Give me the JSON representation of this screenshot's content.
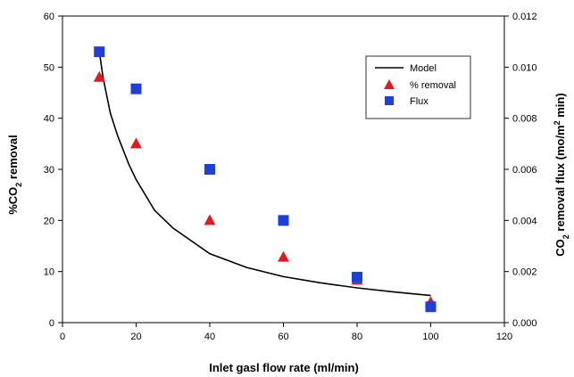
{
  "chart_data": {
    "type": "scatter",
    "x_axis": {
      "label": "Inlet gasl flow rate (ml/min)",
      "range": [
        0,
        120
      ],
      "ticks": [
        "0",
        "20",
        "40",
        "60",
        "80",
        "100",
        "120"
      ]
    },
    "y_axis_left": {
      "label_main": "%CO",
      "label_sub": "2",
      "label_rest": " removal",
      "range": [
        0,
        60
      ],
      "ticks": [
        "0",
        "10",
        "20",
        "30",
        "40",
        "50",
        "60"
      ]
    },
    "y_axis_right": {
      "label_p1": "CO",
      "label_p1_sub": "2",
      "label_p2": "  removal flux (mo/m",
      "label_p2_sup": "2",
      "label_p3": " min)",
      "range": [
        0,
        0.012
      ],
      "ticks": [
        "0.000",
        "0.002",
        "0.004",
        "0.006",
        "0.008",
        "0.010",
        "0.012"
      ]
    },
    "series": [
      {
        "name": "Model",
        "kind": "line",
        "axis": "left",
        "color": "#000000",
        "x": [
          10,
          11,
          12,
          13,
          15,
          18,
          20,
          25,
          30,
          40,
          50,
          60,
          70,
          80,
          90,
          100
        ],
        "y": [
          53,
          48,
          44.5,
          41,
          36.5,
          31,
          28,
          22,
          18.5,
          13.5,
          10.8,
          9,
          7.8,
          6.8,
          6,
          5.3
        ]
      },
      {
        "name": "% removal",
        "kind": "triangle",
        "axis": "left",
        "color": "#e31a1c",
        "x": [
          10,
          20,
          40,
          60,
          80,
          100
        ],
        "y": [
          48,
          35,
          20,
          12.8,
          8.3,
          4
        ]
      },
      {
        "name": "Flux",
        "kind": "square",
        "axis": "right",
        "color": "#1f3fd9",
        "x": [
          10,
          20,
          40,
          60,
          80,
          100
        ],
        "y": [
          0.0106,
          0.00915,
          0.006,
          0.004,
          0.00178,
          0.00062
        ]
      }
    ],
    "legend": {
      "placement": "top-right",
      "entries": [
        "Model",
        "% removal",
        "Flux"
      ]
    },
    "grid": false
  }
}
